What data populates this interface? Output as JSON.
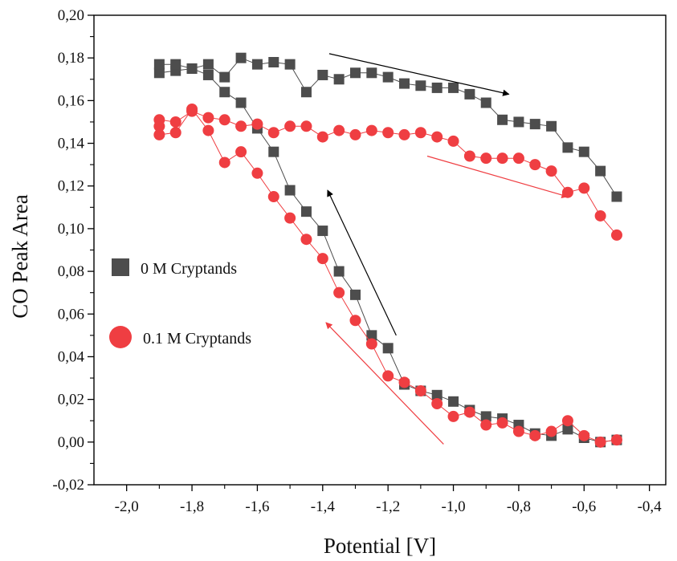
{
  "chart_data": {
    "type": "scatter",
    "title": "",
    "xlabel": "Potential [V]",
    "ylabel": "CO Peak Area",
    "xlim": [
      -2.1,
      -0.35
    ],
    "ylim": [
      -0.02,
      0.2
    ],
    "x_ticks": [
      -2.0,
      -1.8,
      -1.6,
      -1.4,
      -1.2,
      -1.0,
      -0.8,
      -0.6,
      -0.4
    ],
    "x_tick_labels": [
      "-2,0",
      "-1,8",
      "-1,6",
      "-1,4",
      "-1,2",
      "-1,0",
      "-0,8",
      "-0,6",
      "-0,4"
    ],
    "y_ticks": [
      -0.02,
      0.0,
      0.02,
      0.04,
      0.06,
      0.08,
      0.1,
      0.12,
      0.14,
      0.16,
      0.18,
      0.2
    ],
    "y_tick_labels": [
      "-0,02",
      "0,00",
      "0,02",
      "0,04",
      "0,06",
      "0,08",
      "0,10",
      "0,12",
      "0,14",
      "0,16",
      "0,18",
      "0,20"
    ],
    "grid": false,
    "legend_position": "left",
    "series": [
      {
        "name": "0 M Cryptands",
        "marker": "square",
        "color": "#4d4d4d",
        "x": [
          -0.5,
          -0.55,
          -0.6,
          -0.65,
          -0.7,
          -0.75,
          -0.8,
          -0.85,
          -0.9,
          -0.95,
          -1.0,
          -1.05,
          -1.1,
          -1.15,
          -1.2,
          -1.25,
          -1.3,
          -1.35,
          -1.4,
          -1.45,
          -1.5,
          -1.55,
          -1.6,
          -1.65,
          -1.7,
          -1.75,
          -1.8,
          -1.85,
          -1.9,
          -1.9,
          -1.85,
          -1.8,
          -1.75,
          -1.7,
          -1.65,
          -1.6,
          -1.55,
          -1.5,
          -1.45,
          -1.4,
          -1.35,
          -1.3,
          -1.25,
          -1.2,
          -1.15,
          -1.1,
          -1.05,
          -1.0,
          -0.95,
          -0.9,
          -0.85,
          -0.8,
          -0.75,
          -0.7,
          -0.65,
          -0.6,
          -0.55,
          -0.5
        ],
        "y": [
          0.001,
          0.0,
          0.002,
          0.006,
          0.003,
          0.004,
          0.008,
          0.011,
          0.012,
          0.015,
          0.019,
          0.022,
          0.024,
          0.027,
          0.044,
          0.05,
          0.069,
          0.08,
          0.099,
          0.108,
          0.118,
          0.136,
          0.147,
          0.159,
          0.164,
          0.172,
          0.175,
          0.174,
          0.173,
          0.177,
          0.177,
          0.175,
          0.177,
          0.171,
          0.18,
          0.177,
          0.178,
          0.177,
          0.164,
          0.172,
          0.17,
          0.173,
          0.173,
          0.171,
          0.168,
          0.167,
          0.166,
          0.166,
          0.163,
          0.159,
          0.151,
          0.15,
          0.149,
          0.148,
          0.138,
          0.136,
          0.127,
          0.115
        ]
      },
      {
        "name": "0.1 M Cryptands",
        "marker": "circle",
        "color": "#ef3e42",
        "x": [
          -0.5,
          -0.55,
          -0.6,
          -0.65,
          -0.7,
          -0.75,
          -0.8,
          -0.85,
          -0.9,
          -0.95,
          -1.0,
          -1.05,
          -1.1,
          -1.15,
          -1.2,
          -1.25,
          -1.3,
          -1.35,
          -1.4,
          -1.45,
          -1.5,
          -1.55,
          -1.6,
          -1.65,
          -1.7,
          -1.75,
          -1.8,
          -1.85,
          -1.9,
          -1.9,
          -1.9,
          -1.85,
          -1.8,
          -1.75,
          -1.7,
          -1.65,
          -1.6,
          -1.55,
          -1.5,
          -1.45,
          -1.4,
          -1.35,
          -1.3,
          -1.25,
          -1.2,
          -1.15,
          -1.1,
          -1.05,
          -1.0,
          -0.95,
          -0.9,
          -0.85,
          -0.8,
          -0.75,
          -0.7,
          -0.65,
          -0.6,
          -0.55,
          -0.5
        ],
        "y": [
          0.001,
          0.0,
          0.003,
          0.01,
          0.005,
          0.003,
          0.005,
          0.009,
          0.008,
          0.014,
          0.012,
          0.018,
          0.024,
          0.028,
          0.031,
          0.046,
          0.057,
          0.07,
          0.086,
          0.095,
          0.105,
          0.115,
          0.126,
          0.136,
          0.131,
          0.146,
          0.156,
          0.145,
          0.144,
          0.148,
          0.151,
          0.15,
          0.155,
          0.152,
          0.151,
          0.148,
          0.149,
          0.145,
          0.148,
          0.148,
          0.143,
          0.146,
          0.144,
          0.146,
          0.145,
          0.144,
          0.145,
          0.143,
          0.141,
          0.134,
          0.133,
          0.133,
          0.133,
          0.13,
          0.127,
          0.117,
          0.119,
          0.106,
          0.097
        ]
      }
    ],
    "annotations": [
      {
        "type": "arrow",
        "color": "#000000",
        "from": [
          -1.38,
          0.182
        ],
        "to": [
          -0.83,
          0.163
        ]
      },
      {
        "type": "arrow",
        "color": "#ef3e42",
        "from": [
          -1.08,
          0.134
        ],
        "to": [
          -0.65,
          0.115
        ]
      },
      {
        "type": "arrow",
        "color": "#000000",
        "from": [
          -1.175,
          0.05
        ],
        "to": [
          -1.385,
          0.118
        ]
      },
      {
        "type": "arrow",
        "color": "#ef3e42",
        "from": [
          -1.03,
          -0.001
        ],
        "to": [
          -1.39,
          0.056
        ]
      }
    ]
  }
}
